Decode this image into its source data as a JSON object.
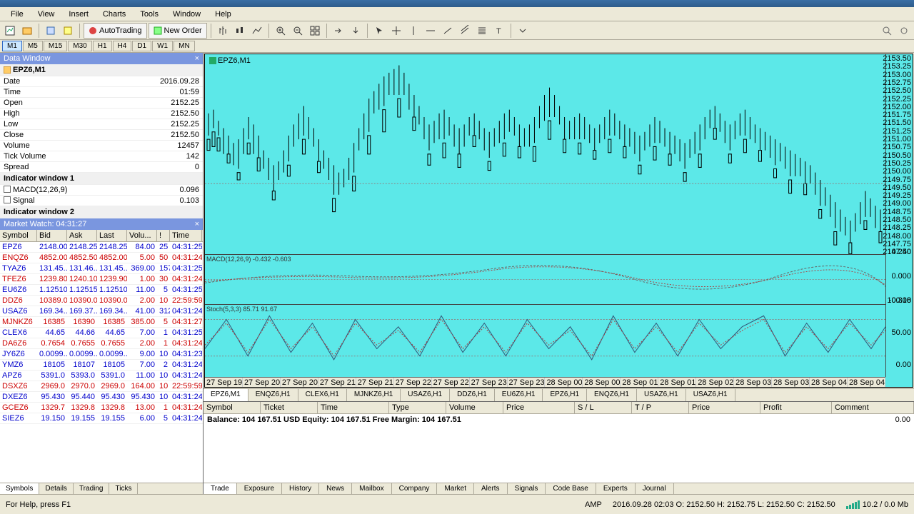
{
  "menu": [
    "File",
    "View",
    "Insert",
    "Charts",
    "Tools",
    "Window",
    "Help"
  ],
  "toolbar": {
    "autotrading": "AutoTrading",
    "neworder": "New Order"
  },
  "timeframes": [
    "M1",
    "M5",
    "M15",
    "M30",
    "H1",
    "H4",
    "D1",
    "W1",
    "MN"
  ],
  "active_tf": "M1",
  "dataWindow": {
    "title": "Data Window",
    "symbol": "EPZ6,M1",
    "rows": [
      {
        "label": "Date",
        "value": "2016.09.28"
      },
      {
        "label": "Time",
        "value": "01:59"
      },
      {
        "label": "Open",
        "value": "2152.25"
      },
      {
        "label": "High",
        "value": "2152.50"
      },
      {
        "label": "Low",
        "value": "2152.25"
      },
      {
        "label": "Close",
        "value": "2152.50"
      },
      {
        "label": "Volume",
        "value": "12457"
      },
      {
        "label": "Tick Volume",
        "value": "142"
      },
      {
        "label": "Spread",
        "value": "0"
      }
    ],
    "indicators": [
      {
        "label": "Indicator window 1",
        "header": true
      },
      {
        "label": "MACD(12,26,9)",
        "value": "0.096"
      },
      {
        "label": "Signal",
        "value": "0.103"
      },
      {
        "label": "Indicator window 2",
        "header": true
      }
    ]
  },
  "marketWatch": {
    "title": "Market Watch: 04:31:27",
    "columns": [
      "Symbol",
      "Bid",
      "Ask",
      "Last",
      "Volu...",
      "!",
      "Time"
    ],
    "rows": [
      {
        "sym": "EPZ6",
        "bid": "2148.00",
        "ask": "2148.25",
        "last": "2148.25",
        "vol": "84.00",
        "i": "25",
        "time": "04:31:25",
        "dir": "up"
      },
      {
        "sym": "ENQZ6",
        "bid": "4852.00",
        "ask": "4852.50",
        "last": "4852.00",
        "vol": "5.00",
        "i": "50",
        "time": "04:31:24",
        "dir": "down"
      },
      {
        "sym": "TYAZ6",
        "bid": "131.45...",
        "ask": "131.46...",
        "last": "131.45...",
        "vol": "369.00",
        "i": "157",
        "time": "04:31:25",
        "dir": "up"
      },
      {
        "sym": "TFEZ6",
        "bid": "1239.80",
        "ask": "1240.10",
        "last": "1239.90",
        "vol": "1.00",
        "i": "30",
        "time": "04:31:24",
        "dir": "down"
      },
      {
        "sym": "EU6Z6",
        "bid": "1.12510",
        "ask": "1.12515",
        "last": "1.12510",
        "vol": "11.00",
        "i": "5",
        "time": "04:31:25",
        "dir": "up"
      },
      {
        "sym": "DDZ6",
        "bid": "10389.0",
        "ask": "10390.0",
        "last": "10390.0",
        "vol": "2.00",
        "i": "10",
        "time": "22:59:59",
        "dir": "down"
      },
      {
        "sym": "USAZ6",
        "bid": "169.34...",
        "ask": "169.37...",
        "last": "169.34...",
        "vol": "41.00",
        "i": "312",
        "time": "04:31:24",
        "dir": "up"
      },
      {
        "sym": "MJNKZ6",
        "bid": "16385",
        "ask": "16390",
        "last": "16385",
        "vol": "385.00",
        "i": "5",
        "time": "04:31:27",
        "dir": "down"
      },
      {
        "sym": "CLEX6",
        "bid": "44.65",
        "ask": "44.66",
        "last": "44.65",
        "vol": "7.00",
        "i": "1",
        "time": "04:31:25",
        "dir": "up"
      },
      {
        "sym": "DA6Z6",
        "bid": "0.7654",
        "ask": "0.7655",
        "last": "0.7655",
        "vol": "2.00",
        "i": "1",
        "time": "04:31:24",
        "dir": "down"
      },
      {
        "sym": "JY6Z6",
        "bid": "0.0099...",
        "ask": "0.0099...",
        "last": "0.0099...",
        "vol": "9.00",
        "i": "10",
        "time": "04:31:23",
        "dir": "up"
      },
      {
        "sym": "YMZ6",
        "bid": "18105",
        "ask": "18107",
        "last": "18105",
        "vol": "7.00",
        "i": "2",
        "time": "04:31:24",
        "dir": "up"
      },
      {
        "sym": "APZ6",
        "bid": "5391.0",
        "ask": "5393.0",
        "last": "5391.0",
        "vol": "11.00",
        "i": "10",
        "time": "04:31:24",
        "dir": "up"
      },
      {
        "sym": "DSXZ6",
        "bid": "2969.0",
        "ask": "2970.0",
        "last": "2969.0",
        "vol": "164.00",
        "i": "10",
        "time": "22:59:59",
        "dir": "down"
      },
      {
        "sym": "DXEZ6",
        "bid": "95.430",
        "ask": "95.440",
        "last": "95.430",
        "vol": "95.430",
        "i": "10",
        "time": "04:31:24",
        "dir": "up"
      },
      {
        "sym": "GCEZ6",
        "bid": "1329.7",
        "ask": "1329.8",
        "last": "1329.8",
        "vol": "13.00",
        "i": "1",
        "time": "04:31:24",
        "dir": "down"
      },
      {
        "sym": "SIEZ6",
        "bid": "19.150",
        "ask": "19.155",
        "last": "19.155",
        "vol": "6.00",
        "i": "5",
        "time": "04:31:24",
        "dir": "up"
      }
    ],
    "tabs": [
      "Symbols",
      "Details",
      "Trading",
      "Ticks"
    ],
    "active_tab": "Symbols"
  },
  "chart": {
    "title": "EPZ6,M1",
    "bg_color": "#5ce8e8",
    "yticks_main": [
      "2153.50",
      "2153.25",
      "2153.00",
      "2152.75",
      "2152.50",
      "2152.25",
      "2152.00",
      "2151.75",
      "2151.50",
      "2151.25",
      "2151.00",
      "2150.75",
      "2150.50",
      "2150.25",
      "2150.00",
      "2149.75",
      "2149.50",
      "2149.25",
      "2149.00",
      "2148.75",
      "2148.50",
      "2148.25",
      "2148.00",
      "2147.75",
      "2147.50"
    ],
    "yticks_ind1": [
      "0.240",
      "0.000",
      "-0.318"
    ],
    "yticks_ind2": [
      "100.00",
      "50.00",
      "0.00"
    ],
    "macd_label": "MACD(12,26,9) -0.432 -0.603",
    "stoch_label": "Stoch(5,3,3) 85.71 91.67",
    "xticks": [
      "27 Sep 19:41",
      "27 Sep 20:14",
      "27 Sep 20:46",
      "27 Sep 21:19",
      "27 Sep 21:51",
      "27 Sep 22:22",
      "27 Sep 22:27",
      "27 Sep 23:01",
      "27 Sep 23:34",
      "28 Sep 00:04",
      "28 Sep 00:36",
      "28 Sep 01:18",
      "28 Sep 01:53",
      "28 Sep 02:26",
      "28 Sep 03:00",
      "28 Sep 03:33",
      "28 Sep 04:01",
      "28 Sep 04:26"
    ],
    "tabs": [
      "EPZ6,M1",
      "ENQZ6,H1",
      "CLEX6,H1",
      "MJNKZ6,H1",
      "USAZ6,H1",
      "DDZ6,H1",
      "EU6Z6,H1",
      "EPZ6,H1",
      "ENQZ6,H1",
      "USAZ6,H1",
      "USAZ6,H1"
    ],
    "active_tab": "EPZ6,M1"
  },
  "terminal": {
    "columns": [
      "Symbol",
      "Ticket",
      "Time",
      "Type",
      "Volume",
      "Price",
      "S / L",
      "T / P",
      "Price",
      "Profit",
      "Comment"
    ],
    "balance_line": "Balance: 104 167.51 USD  Equity: 104 167.51  Free Margin: 104 167.51",
    "profit": "0.00",
    "tabs": [
      "Trade",
      "Exposure",
      "History",
      "News",
      "Mailbox",
      "Company",
      "Market",
      "Alerts",
      "Signals",
      "Code Base",
      "Experts",
      "Journal"
    ],
    "active_tab": "Trade"
  },
  "statusbar": {
    "help": "For Help, press F1",
    "broker": "AMP",
    "bar_info": "2016.09.28 02:03   O: 2152.50   H: 2152.75   L: 2152.50   C: 2152.50",
    "traffic": "10.2 / 0.0 Mb"
  }
}
